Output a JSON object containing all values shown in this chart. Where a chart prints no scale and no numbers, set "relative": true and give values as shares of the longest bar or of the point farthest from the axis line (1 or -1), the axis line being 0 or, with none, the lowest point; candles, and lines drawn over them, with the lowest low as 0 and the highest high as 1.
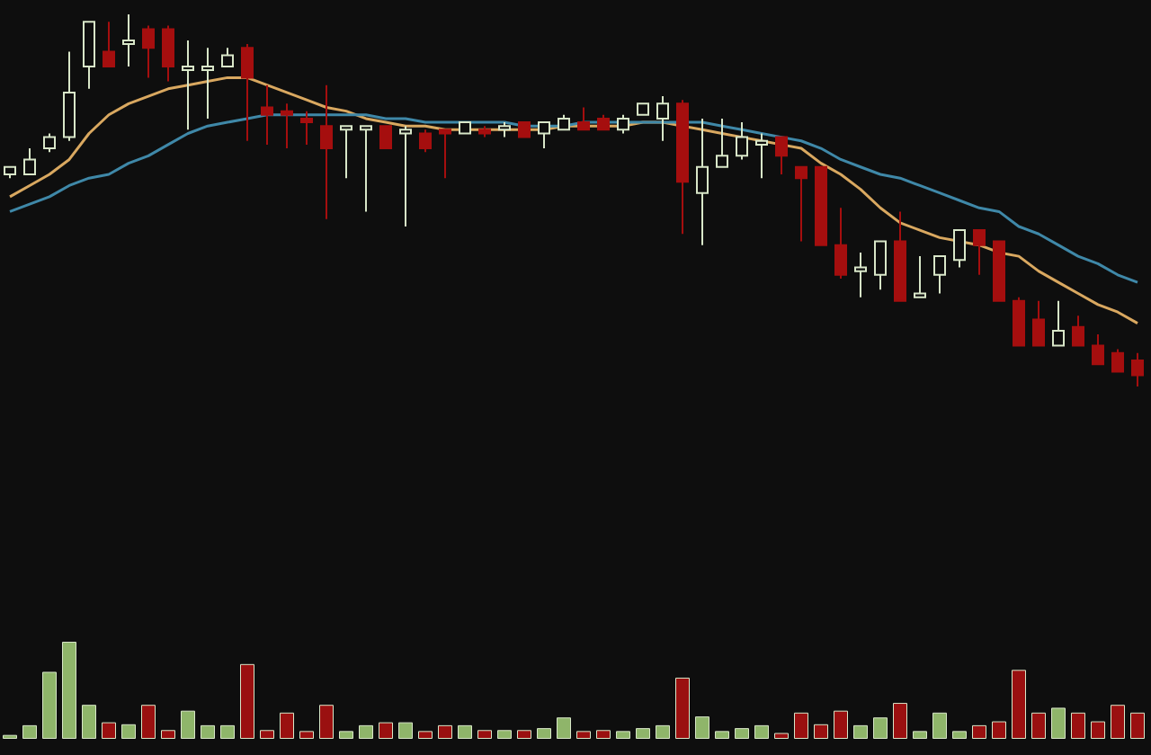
{
  "chart_data": [
    {
      "type": "candlestick",
      "relative": true,
      "categories": [
        null,
        null,
        null,
        null,
        null,
        null,
        null,
        null,
        null,
        null,
        null,
        null,
        null,
        null,
        null,
        null,
        null,
        null,
        null,
        null,
        null,
        null,
        null,
        null,
        null,
        null,
        null,
        null,
        null,
        null,
        null,
        null,
        null,
        null,
        null,
        null,
        null,
        null,
        null,
        null,
        null,
        null,
        null,
        null,
        null,
        null,
        null,
        null,
        null,
        null,
        null,
        null,
        null,
        null,
        null,
        null,
        null,
        null
      ],
      "ohlc": [
        [
          0.57,
          0.59,
          0.56,
          0.59
        ],
        [
          0.57,
          0.64,
          0.57,
          0.61
        ],
        [
          0.64,
          0.68,
          0.63,
          0.67
        ],
        [
          0.67,
          0.9,
          0.66,
          0.79
        ],
        [
          0.86,
          0.98,
          0.8,
          0.98
        ],
        [
          0.9,
          0.98,
          0.86,
          0.86
        ],
        [
          0.92,
          1,
          0.86,
          0.93
        ],
        [
          0.96,
          0.97,
          0.83,
          0.91
        ],
        [
          0.96,
          0.97,
          0.82,
          0.86
        ],
        [
          0.85,
          0.93,
          0.69,
          0.86
        ],
        [
          0.85,
          0.91,
          0.72,
          0.86
        ],
        [
          0.86,
          0.91,
          0.86,
          0.89
        ],
        [
          0.91,
          0.92,
          0.66,
          0.83
        ],
        [
          0.75,
          0.81,
          0.65,
          0.73
        ],
        [
          0.74,
          0.76,
          0.64,
          0.73
        ],
        [
          0.72,
          0.74,
          0.65,
          0.71
        ],
        [
          0.7,
          0.81,
          0.45,
          0.64
        ],
        [
          0.69,
          0.7,
          0.56,
          0.7
        ],
        [
          0.69,
          0.7,
          0.47,
          0.7
        ],
        [
          0.7,
          0.7,
          0.64,
          0.64
        ],
        [
          0.68,
          0.7,
          0.43,
          0.69
        ],
        [
          0.68,
          0.69,
          0.63,
          0.64
        ],
        [
          0.69,
          0.69,
          0.56,
          0.68
        ],
        [
          0.68,
          0.71,
          0.68,
          0.71
        ],
        [
          0.69,
          0.7,
          0.67,
          0.68
        ],
        [
          0.69,
          0.71,
          0.67,
          0.7
        ],
        [
          0.71,
          0.71,
          0.67,
          0.67
        ],
        [
          0.68,
          0.71,
          0.64,
          0.71
        ],
        [
          0.69,
          0.73,
          0.69,
          0.72
        ],
        [
          0.71,
          0.75,
          0.69,
          0.69
        ],
        [
          0.72,
          0.73,
          0.69,
          0.69
        ],
        [
          0.69,
          0.73,
          0.68,
          0.72
        ],
        [
          0.73,
          0.76,
          0.73,
          0.76
        ],
        [
          0.72,
          0.78,
          0.66,
          0.76
        ],
        [
          0.76,
          0.77,
          0.41,
          0.55
        ],
        [
          0.52,
          0.72,
          0.38,
          0.59
        ],
        [
          0.59,
          0.72,
          0.59,
          0.62
        ],
        [
          0.62,
          0.71,
          0.61,
          0.67
        ],
        [
          0.65,
          0.68,
          0.56,
          0.66
        ],
        [
          0.67,
          0.67,
          0.57,
          0.62
        ],
        [
          0.59,
          0.59,
          0.39,
          0.56
        ],
        [
          0.59,
          0.59,
          0.38,
          0.38
        ],
        [
          0.38,
          0.48,
          0.29,
          0.3
        ],
        [
          0.31,
          0.36,
          0.24,
          0.32
        ],
        [
          0.3,
          0.39,
          0.26,
          0.39
        ],
        [
          0.39,
          0.47,
          0.23,
          0.23
        ],
        [
          0.24,
          0.35,
          0.24,
          0.25
        ],
        [
          0.3,
          0.35,
          0.25,
          0.35
        ],
        [
          0.34,
          0.42,
          0.32,
          0.42
        ],
        [
          0.42,
          0.42,
          0.3,
          0.38
        ],
        [
          0.39,
          0.39,
          0.23,
          0.23
        ],
        [
          0.23,
          0.24,
          0.11,
          0.11
        ],
        [
          0.18,
          0.23,
          0.11,
          0.11
        ],
        [
          0.11,
          0.23,
          0.11,
          0.15
        ],
        [
          0.16,
          0.19,
          0.11,
          0.11
        ],
        [
          0.11,
          0.14,
          0.06,
          0.06
        ],
        [
          0.09,
          0.1,
          0.04,
          0.04
        ],
        [
          0.07,
          0.09,
          0,
          0.03
        ]
      ],
      "colors": [
        "#d8e6c8",
        "#d8e6c8",
        "#d8e6c8",
        "#d8e6c8",
        "#d8e6c8",
        "#a50e0e",
        "#d8e6c8",
        "#a50e0e",
        "#a50e0e",
        "#d8e6c8",
        "#d8e6c8",
        "#d8e6c8",
        "#a50e0e",
        "#a50e0e",
        "#a50e0e",
        "#a50e0e",
        "#a50e0e",
        "#d8e6c8",
        "#d8e6c8",
        "#a50e0e",
        "#d8e6c8",
        "#a50e0e",
        "#a50e0e",
        "#d8e6c8",
        "#a50e0e",
        "#d8e6c8",
        "#a50e0e",
        "#d8e6c8",
        "#d8e6c8",
        "#a50e0e",
        "#a50e0e",
        "#d8e6c8",
        "#d8e6c8",
        "#d8e6c8",
        "#a50e0e",
        "#d8e6c8",
        "#d8e6c8",
        "#d8e6c8",
        "#d8e6c8",
        "#a50e0e",
        "#a50e0e",
        "#a50e0e",
        "#a50e0e",
        "#d8e6c8",
        "#d8e6c8",
        "#a50e0e",
        "#d8e6c8",
        "#d8e6c8",
        "#d8e6c8",
        "#a50e0e",
        "#a50e0e",
        "#a50e0e",
        "#a50e0e",
        "#d8e6c8",
        "#a50e0e",
        "#a50e0e",
        "#a50e0e",
        "#a50e0e"
      ],
      "series": [
        {
          "type": "line",
          "color": "#d9a860",
          "values": [
            0.51,
            0.54,
            0.57,
            0.61,
            0.68,
            0.73,
            0.76,
            0.78,
            0.8,
            0.81,
            0.82,
            0.83,
            0.83,
            0.81,
            0.79,
            0.77,
            0.75,
            0.74,
            0.72,
            0.71,
            0.7,
            0.7,
            0.69,
            0.69,
            0.69,
            0.69,
            0.69,
            0.69,
            0.7,
            0.7,
            0.7,
            0.7,
            0.71,
            0.71,
            0.7,
            0.69,
            0.68,
            0.67,
            0.66,
            0.65,
            0.64,
            0.6,
            0.57,
            0.53,
            0.48,
            0.44,
            0.42,
            0.4,
            0.39,
            0.38,
            0.36,
            0.35,
            0.31,
            0.28,
            0.25,
            0.22,
            0.2,
            0.17
          ]
        },
        {
          "type": "line",
          "color": "#3f88a8",
          "values": [
            0.47,
            0.49,
            0.51,
            0.54,
            0.56,
            0.57,
            0.6,
            0.62,
            0.65,
            0.68,
            0.7,
            0.71,
            0.72,
            0.73,
            0.73,
            0.73,
            0.73,
            0.73,
            0.73,
            0.72,
            0.72,
            0.71,
            0.71,
            0.71,
            0.71,
            0.71,
            0.7,
            0.7,
            0.7,
            0.71,
            0.71,
            0.71,
            0.71,
            0.71,
            0.71,
            0.71,
            0.7,
            0.69,
            0.68,
            0.67,
            0.66,
            0.64,
            0.61,
            0.59,
            0.57,
            0.56,
            0.54,
            0.52,
            0.5,
            0.48,
            0.47,
            0.43,
            0.41,
            0.38,
            0.35,
            0.33,
            0.3,
            0.28
          ]
        }
      ]
    },
    {
      "type": "bar",
      "relative": true,
      "categories": [
        null,
        null,
        null,
        null,
        null,
        null,
        null,
        null,
        null,
        null,
        null,
        null,
        null,
        null,
        null,
        null,
        null,
        null,
        null,
        null,
        null,
        null,
        null,
        null,
        null,
        null,
        null,
        null,
        null,
        null,
        null,
        null,
        null,
        null,
        null,
        null,
        null,
        null,
        null,
        null,
        null,
        null,
        null,
        null,
        null,
        null,
        null,
        null,
        null,
        null,
        null,
        null,
        null,
        null,
        null,
        null,
        null,
        null
      ],
      "values": [
        0.04,
        0.14,
        0.69,
        1,
        0.35,
        0.17,
        0.15,
        0.35,
        0.09,
        0.29,
        0.14,
        0.14,
        0.77,
        0.09,
        0.27,
        0.08,
        0.35,
        0.08,
        0.14,
        0.17,
        0.17,
        0.08,
        0.14,
        0.14,
        0.09,
        0.09,
        0.09,
        0.11,
        0.22,
        0.08,
        0.09,
        0.08,
        0.11,
        0.14,
        0.63,
        0.23,
        0.08,
        0.11,
        0.14,
        0.06,
        0.27,
        0.15,
        0.29,
        0.14,
        0.22,
        0.37,
        0.08,
        0.27,
        0.08,
        0.14,
        0.18,
        0.71,
        0.27,
        0.32,
        0.27,
        0.18,
        0.35,
        0.27
      ],
      "colors": [
        "#8fb56a",
        "#8fb56a",
        "#8fb56a",
        "#8fb56a",
        "#8fb56a",
        "#9a1010",
        "#8fb56a",
        "#9a1010",
        "#9a1010",
        "#8fb56a",
        "#8fb56a",
        "#8fb56a",
        "#9a1010",
        "#9a1010",
        "#9a1010",
        "#9a1010",
        "#9a1010",
        "#8fb56a",
        "#8fb56a",
        "#9a1010",
        "#8fb56a",
        "#9a1010",
        "#9a1010",
        "#8fb56a",
        "#9a1010",
        "#8fb56a",
        "#9a1010",
        "#8fb56a",
        "#8fb56a",
        "#9a1010",
        "#9a1010",
        "#8fb56a",
        "#8fb56a",
        "#8fb56a",
        "#9a1010",
        "#8fb56a",
        "#8fb56a",
        "#8fb56a",
        "#8fb56a",
        "#9a1010",
        "#9a1010",
        "#9a1010",
        "#9a1010",
        "#8fb56a",
        "#8fb56a",
        "#9a1010",
        "#8fb56a",
        "#8fb56a",
        "#8fb56a",
        "#9a1010",
        "#9a1010",
        "#9a1010",
        "#9a1010",
        "#8fb56a",
        "#9a1010",
        "#9a1010",
        "#9a1010",
        "#9a1010"
      ]
    }
  ]
}
